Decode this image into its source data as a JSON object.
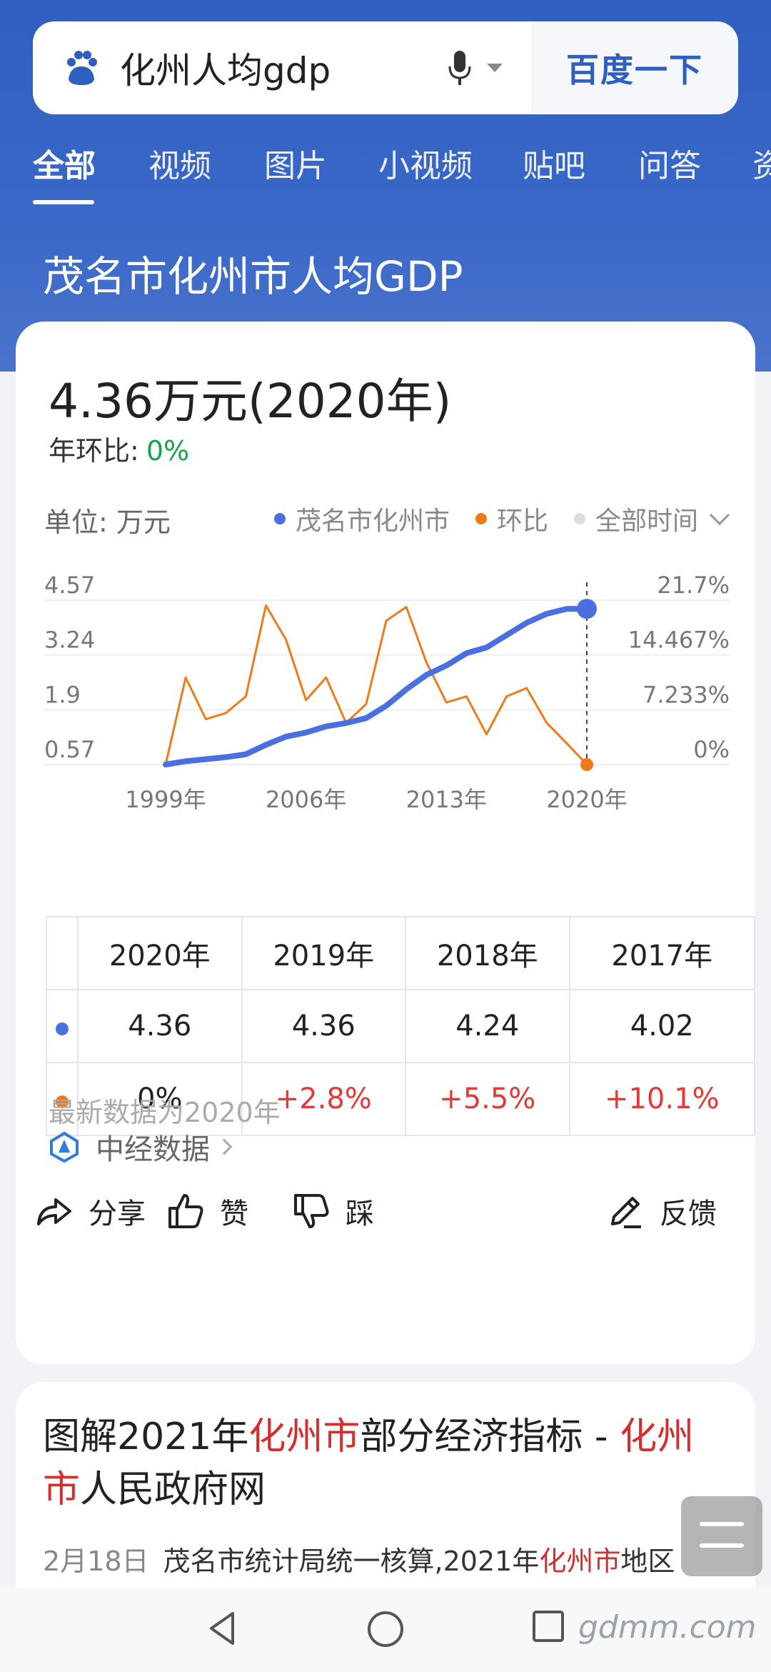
{
  "search": {
    "query": "化州人均gdp",
    "button_label": "百度一下"
  },
  "tabs": [
    {
      "label": "全部"
    },
    {
      "label": "视频"
    },
    {
      "label": "图片"
    },
    {
      "label": "小视频"
    },
    {
      "label": "贴吧"
    },
    {
      "label": "问答"
    },
    {
      "label": "资"
    }
  ],
  "heading": "茂名市化州市人均GDP",
  "card": {
    "big_value": "4.36万元(2020年)",
    "yoy_label": "年环比:",
    "yoy_value": "0%",
    "unit_label": "单位: 万元",
    "legend": {
      "series1": "茂名市化州市",
      "series2": "环比",
      "range": "全部时间"
    },
    "latest_note": "最新数据为2020年",
    "source_label": "中经数据"
  },
  "chart_data": {
    "type": "line",
    "x": [
      1999,
      2000,
      2001,
      2002,
      2003,
      2004,
      2005,
      2006,
      2007,
      2008,
      2009,
      2010,
      2011,
      2012,
      2013,
      2014,
      2015,
      2016,
      2017,
      2018,
      2019,
      2020
    ],
    "x_tick_labels": [
      "1999年",
      "2006年",
      "2013年",
      "2020年"
    ],
    "y_left_ticks": [
      "4.57",
      "3.24",
      "1.9",
      "0.57"
    ],
    "y_right_ticks": [
      "21.7%",
      "14.467%",
      "7.233%",
      "0%"
    ],
    "y_left_range": [
      0.57,
      4.57
    ],
    "y_right_range": [
      0,
      21.7
    ],
    "series": [
      {
        "name": "茂名市化州市",
        "color": "#4a6fe0",
        "values": [
          0.57,
          0.65,
          0.7,
          0.75,
          0.82,
          1.05,
          1.25,
          1.35,
          1.5,
          1.58,
          1.7,
          2.0,
          2.4,
          2.75,
          2.98,
          3.28,
          3.42,
          3.72,
          4.02,
          4.24,
          4.36,
          4.36
        ]
      },
      {
        "name": "环比",
        "color": "#f07a1a",
        "values": [
          0,
          11.5,
          6.0,
          6.8,
          9.0,
          21.0,
          16.5,
          8.5,
          11.5,
          5.5,
          8.0,
          19.0,
          20.8,
          13.5,
          8.2,
          9.0,
          4.0,
          9.0,
          10.1,
          5.5,
          2.8,
          0
        ]
      }
    ],
    "highlight_year": 2020
  },
  "table": {
    "years": [
      "2020年",
      "2019年",
      "2018年",
      "2017年"
    ],
    "gdp": [
      "4.36",
      "4.36",
      "4.24",
      "4.02"
    ],
    "growth": [
      "0%",
      "+2.8%",
      "+5.5%",
      "+10.1%"
    ]
  },
  "actions": {
    "share": "分享",
    "like": "赞",
    "dislike": "踩",
    "feedback": "反馈"
  },
  "result2": {
    "title_parts": [
      "图解2021年",
      "化州市",
      "部分经济指标 - ",
      "化州市",
      "人民政府网"
    ],
    "date": "2月18日",
    "snippet_parts": [
      "茂名市统计局统一核算,2021年",
      "化州市",
      "地区"
    ]
  },
  "watermark": "gdmm.com",
  "colors": {
    "accent": "#2f5fc1",
    "series_blue": "#4a6fe0",
    "series_orange": "#f07a1a",
    "negative_red": "#e53935",
    "positive_green": "#16a34a"
  }
}
